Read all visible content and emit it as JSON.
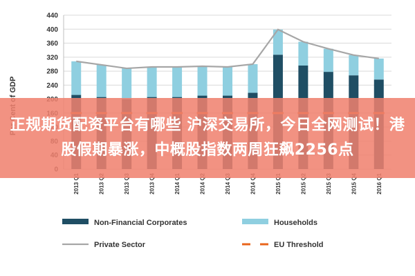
{
  "chart_data": {
    "type": "bar",
    "stacked": true,
    "categories": [
      "2013 Q1",
      "2013 Q2",
      "2013 Q3",
      "2013 Q4",
      "2014 Q1",
      "2014 Q2",
      "2014 Q3",
      "2014 Q4",
      "2015 Q1",
      "2015 Q2",
      "2015 Q3",
      "2015 Q4",
      "2016 Q1"
    ],
    "series": [
      {
        "name": "Non-Financial Corporates",
        "kind": "bar",
        "color": "#1f4e64",
        "values": [
          212,
          206,
          200,
          206,
          206,
          210,
          210,
          218,
          327,
          296,
          278,
          268,
          256
        ]
      },
      {
        "name": "Households",
        "kind": "bar",
        "color": "#8fcfe0",
        "values": [
          96,
          92,
          88,
          86,
          86,
          84,
          82,
          82,
          72,
          68,
          66,
          58,
          60
        ]
      },
      {
        "name": "Private Sector",
        "kind": "line",
        "color": "#a6a6a6",
        "values": [
          308,
          298,
          288,
          292,
          292,
          294,
          292,
          300,
          399,
          364,
          344,
          326,
          316
        ]
      },
      {
        "name": "EU Threshold",
        "kind": "dashed-line",
        "color": "#e8641b",
        "values": [
          160,
          160,
          160,
          160,
          160,
          160,
          160,
          160,
          160,
          160,
          160,
          160,
          160
        ]
      }
    ],
    "ylabel": "Per Cent of GDP",
    "xlabel": "",
    "title": "",
    "ylim": [
      0,
      440
    ],
    "yticks": [
      0,
      40,
      80,
      120,
      160,
      200,
      240,
      280,
      320,
      360,
      400,
      440
    ],
    "grid": true,
    "legend_position": "bottom"
  },
  "overlay": {
    "banner_text": "正规期货配资平台有哪些 沪深交易所，今日全网测试！港股假期暴涨，中概股指数两周狂飙2256点",
    "banner_color": "#f0806e"
  }
}
